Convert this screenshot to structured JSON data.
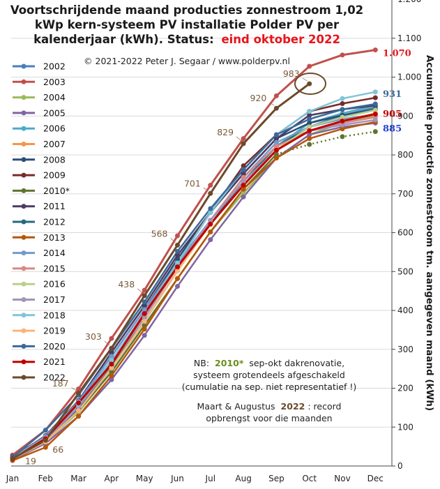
{
  "title_lines": [
    "Voortschrijdende maand producties zonnestroom 1,02",
    "kWp kern-systeem PV installatie Polder PV per",
    "kalenderjaar (kWh). Status:"
  ],
  "title_status": "eind oktober 2022",
  "copyright": "© 2021-2022 Peter J. Segaar / www.polderpv.nl",
  "note": {
    "line1_prefix": "NB:",
    "line1_year": "2010*",
    "line1_suffix": "sep-okt dakrenovatie,",
    "line2": "systeem grotendeels afgeschakeld",
    "line3": "(cumulatie na sep. niet representatief !)",
    "line4_prefix": "Maart & Augustus",
    "line4_year": "2022",
    "line4_suffix": ": record",
    "line5": "opbrengst voor die maanden"
  },
  "chart_data": {
    "type": "line",
    "categories": [
      "Jan",
      "Feb",
      "Mar",
      "Apr",
      "May",
      "Jun",
      "Jul",
      "Aug",
      "Sep",
      "Oct",
      "Nov",
      "Dec"
    ],
    "x_tick_labels": [
      "Jan",
      "Feb",
      "Mar",
      "Apr",
      "May",
      "Jun",
      "Jul",
      "Aug",
      "Sep",
      "Oct",
      "Nov",
      "Dec"
    ],
    "ylabel": "Accumulatie productie zonnestroom tm. aangegeven maand (kWh)",
    "ylim": [
      0,
      1200
    ],
    "y_ticks": [
      0,
      100,
      200,
      300,
      400,
      500,
      600,
      700,
      800,
      900,
      "1.000",
      "1.100",
      "1.200"
    ],
    "y_axis_side": "right",
    "grid": true,
    "legend_position": "left",
    "series": [
      {
        "name": "2002",
        "color": "#4a7ebb",
        "values": [
          22,
          72,
          162,
          272,
          392,
          522,
          622,
          722,
          812,
          872,
          902,
          922
        ]
      },
      {
        "name": "2003",
        "color": "#c0504d",
        "values": [
          28,
          92,
          198,
          328,
          452,
          592,
          722,
          842,
          952,
          1028,
          1057,
          1070
        ]
      },
      {
        "name": "2004",
        "color": "#9bbb59",
        "values": [
          18,
          62,
          138,
          242,
          362,
          482,
          602,
          702,
          792,
          852,
          882,
          902
        ]
      },
      {
        "name": "2005",
        "color": "#8064a2",
        "values": [
          16,
          58,
          128,
          222,
          336,
          462,
          582,
          692,
          792,
          852,
          872,
          882
        ]
      },
      {
        "name": "2006",
        "color": "#4bacc6",
        "values": [
          20,
          68,
          152,
          262,
          382,
          512,
          632,
          732,
          822,
          882,
          907,
          927
        ]
      },
      {
        "name": "2007",
        "color": "#f79646",
        "values": [
          18,
          62,
          144,
          252,
          372,
          502,
          622,
          722,
          812,
          862,
          887,
          907
        ]
      },
      {
        "name": "2008",
        "color": "#2c4d75",
        "values": [
          24,
          76,
          168,
          282,
          402,
          532,
          652,
          752,
          842,
          882,
          902,
          917
        ]
      },
      {
        "name": "2009",
        "color": "#772c2a",
        "values": [
          20,
          70,
          158,
          268,
          392,
          522,
          652,
          772,
          852,
          912,
          932,
          947
        ]
      },
      {
        "name": "2010*",
        "color": "#5f7530",
        "values": [
          18,
          62,
          142,
          242,
          362,
          482,
          602,
          712,
          802,
          827,
          847,
          860
        ]
      },
      {
        "name": "2011",
        "color": "#4d3b62",
        "values": [
          22,
          78,
          168,
          292,
          412,
          542,
          652,
          752,
          842,
          902,
          917,
          927
        ]
      },
      {
        "name": "2012",
        "color": "#276a7c",
        "values": [
          18,
          64,
          148,
          258,
          372,
          502,
          622,
          732,
          822,
          872,
          897,
          917
        ]
      },
      {
        "name": "2013",
        "color": "#b65708",
        "values": [
          14,
          48,
          128,
          232,
          352,
          482,
          602,
          712,
          792,
          842,
          867,
          885
        ]
      },
      {
        "name": "2014",
        "color": "#729aca",
        "values": [
          22,
          76,
          166,
          282,
          402,
          522,
          632,
          742,
          832,
          872,
          892,
          905
        ]
      },
      {
        "name": "2015",
        "color": "#d98785",
        "values": [
          20,
          72,
          152,
          262,
          382,
          512,
          632,
          742,
          822,
          862,
          882,
          897
        ]
      },
      {
        "name": "2016",
        "color": "#b8d08b",
        "values": [
          18,
          62,
          142,
          252,
          372,
          502,
          622,
          722,
          812,
          872,
          897,
          915
        ]
      },
      {
        "name": "2017",
        "color": "#a394b8",
        "values": [
          18,
          66,
          152,
          262,
          382,
          512,
          632,
          732,
          812,
          862,
          877,
          890
        ]
      },
      {
        "name": "2018",
        "color": "#7fc6d8",
        "values": [
          20,
          70,
          158,
          272,
          392,
          522,
          652,
          762,
          852,
          912,
          945,
          962
        ]
      },
      {
        "name": "2019",
        "color": "#fab37c",
        "values": [
          18,
          62,
          142,
          252,
          372,
          502,
          622,
          722,
          812,
          862,
          887,
          907
        ]
      },
      {
        "name": "2020",
        "color": "#3a6a9a",
        "values": [
          22,
          92,
          182,
          302,
          422,
          552,
          662,
          762,
          852,
          892,
          917,
          931
        ]
      },
      {
        "name": "2021",
        "color": "#c00000",
        "values": [
          18,
          70,
          162,
          262,
          392,
          512,
          622,
          722,
          812,
          862,
          887,
          905
        ]
      },
      {
        "name": "2022",
        "color": "#6b4a2a",
        "values": [
          19,
          66,
          187,
          303,
          438,
          568,
          701,
          829,
          920,
          983,
          null,
          null
        ]
      }
    ],
    "extra_line_2010_dotted": [
      802,
      827,
      847,
      860
    ],
    "point_labels_2022": [
      "19",
      "66",
      "187",
      "303",
      "438",
      "568",
      "701",
      "829",
      "920",
      "983"
    ],
    "end_labels": [
      {
        "text": "1.070",
        "color": "#e8141b",
        "value": 1070
      },
      {
        "text": "931",
        "color": "#3a6a9a",
        "value": 931
      },
      {
        "text": "905",
        "color": "#c00000",
        "value": 905
      },
      {
        "text": "885",
        "color": "#1f3fcf",
        "value": 885
      }
    ]
  }
}
